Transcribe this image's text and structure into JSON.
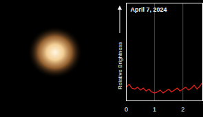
{
  "chart_data": {
    "type": "line",
    "title": "April 7, 2024",
    "ylabel": "Relative Brightness",
    "x": [
      0,
      0.1,
      0.2,
      0.3,
      0.4,
      0.5,
      0.6,
      0.7,
      0.8,
      0.9,
      1.0,
      1.1,
      1.2,
      1.3,
      1.4,
      1.5,
      1.6,
      1.7,
      1.8,
      1.9,
      2.0,
      2.1,
      2.2,
      2.3,
      2.4,
      2.5,
      2.6,
      2.7
    ],
    "values": [
      0.14,
      0.17,
      0.13,
      0.12,
      0.14,
      0.11,
      0.13,
      0.1,
      0.12,
      0.09,
      0.08,
      0.09,
      0.11,
      0.08,
      0.1,
      0.12,
      0.09,
      0.11,
      0.13,
      0.1,
      0.12,
      0.14,
      0.11,
      0.13,
      0.16,
      0.12,
      0.15,
      0.19
    ],
    "color": "#e0201b",
    "xlim": [
      0,
      2.7
    ],
    "xticks": [
      0,
      1,
      2
    ],
    "ylim": [
      0,
      1
    ],
    "yticks": [],
    "grid": true,
    "tick_labels": "x"
  }
}
